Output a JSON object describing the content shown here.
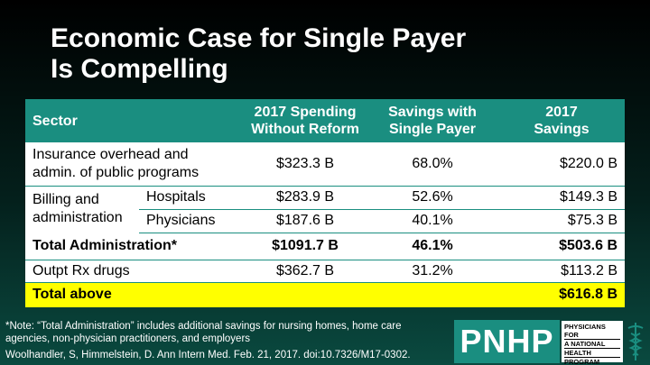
{
  "title": {
    "line1": "Economic Case for Single Payer",
    "line2": "Is Compelling"
  },
  "table": {
    "headers": {
      "sector": "Sector",
      "spending_l1": "2017 Spending",
      "spending_l2": "Without Reform",
      "savings_pct_l1": "Savings with",
      "savings_pct_l2": "Single Payer",
      "savings_l1": "2017",
      "savings_l2": "Savings"
    },
    "rows": {
      "insurance": {
        "label_l1": "Insurance overhead and",
        "label_l2": "admin. of public programs",
        "spending": "$323.3 B",
        "pct": "68.0%",
        "savings": "$220.0 B"
      },
      "billing": {
        "group_l1": "Billing and",
        "group_l2": "administration",
        "hospitals": {
          "label": "Hospitals",
          "spending": "$283.9 B",
          "pct": "52.6%",
          "savings": "$149.3 B"
        },
        "physicians": {
          "label": "Physicians",
          "spending": "$187.6 B",
          "pct": "40.1%",
          "savings": "$75.3 B"
        }
      },
      "total_admin": {
        "label": "Total Administration*",
        "spending": "$1091.7 B",
        "pct": "46.1%",
        "savings": "$503.6 B"
      },
      "outpt": {
        "label": "Outpt Rx drugs",
        "spending": "$362.7 B",
        "pct": "31.2%",
        "savings": "$113.2 B"
      },
      "total_above": {
        "label": "Total above",
        "savings": "$616.8 B"
      }
    }
  },
  "footnote": "*Note: “Total Administration” includes additional savings for nursing homes, home care agencies, non-physician practitioners, and employers",
  "citation": "Woolhandler, S, Himmelstein, D. Ann Intern Med. Feb. 21, 2017. doi:10.7326/M17-0302.",
  "logo": {
    "mark": "PNHP",
    "line1": "PHYSICIANS FOR",
    "line2": "A NATIONAL",
    "line3": "HEALTH",
    "line4": "PROGRAM",
    "icon": "caduceus-icon"
  },
  "colors": {
    "header_teal": "#1a8e80",
    "highlight_yellow": "#ffff00"
  }
}
